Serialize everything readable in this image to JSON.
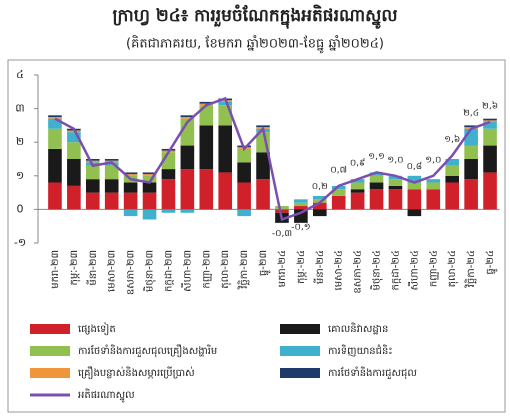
{
  "chart_data": {
    "type": "bar",
    "title": "ក្រាហ្វ ២៤៖ ការរួមចំណែកក្នុងអតិផរណាស្នូល",
    "subtitle": "(គិតជាភាគរយ, ខែមករា ឆ្នាំ២០២៣-ខែធ្នូ ឆ្នាំ២០២៤)",
    "categories": [
      "មករា-២៣",
      "កុម្ភៈ-២៣",
      "មីនា-២៣",
      "មេសា-២៣",
      "ឧសភា-២៣",
      "មិថុនា-២៣",
      "កក្កដា-២៣",
      "សីហា-២៣",
      "កញ្ញា-២៣",
      "តុលា-២៣",
      "វិច្ឆិកា-២៣",
      "ធ្នូ-២៣",
      "មករា-២៤",
      "កុម្ភៈ-២៤",
      "មីនា-២៤",
      "មេសា-២៤",
      "ឧសភា-២៤",
      "មិថុនា-២៤",
      "កក្កដា-២៤",
      "សីហា-២៤",
      "កញ្ញា-២៤",
      "តុលា-២៤",
      "វិច្ឆិកា-២៤",
      "ធ្នូ-២៤"
    ],
    "series": [
      {
        "name": "ផ្សេងទៀត",
        "color": "#d0202a",
        "values": [
          0.8,
          0.7,
          0.5,
          0.5,
          0.5,
          0.5,
          0.9,
          1.2,
          1.2,
          1.1,
          0.8,
          0.9,
          -0.1,
          0.1,
          0.2,
          0.4,
          0.5,
          0.6,
          0.6,
          0.6,
          0.6,
          0.8,
          0.9,
          1.1
        ]
      },
      {
        "name": "គោលនិវាសដ្ឋាន",
        "color": "#1a1a1a",
        "values": [
          1.0,
          0.8,
          0.4,
          0.4,
          0.3,
          0.3,
          0.3,
          0.7,
          1.3,
          1.4,
          0.6,
          0.8,
          -0.3,
          -0.4,
          -0.2,
          0.0,
          0.1,
          0.2,
          0.1,
          -0.2,
          0.0,
          0.2,
          0.6,
          0.8
        ]
      },
      {
        "name": "ការថែទាំនិងការជួសជុលគ្រឿងសង្ហារិម",
        "color": "#92c050",
        "values": [
          0.6,
          0.5,
          0.4,
          0.4,
          0.2,
          0.2,
          0.5,
          0.8,
          0.6,
          0.6,
          0.4,
          0.6,
          0.1,
          0.1,
          0.1,
          0.2,
          0.2,
          0.2,
          0.2,
          0.2,
          0.2,
          0.3,
          0.4,
          0.5
        ]
      },
      {
        "name": "ការទិញយានជំនិះ",
        "color": "#3fb1ce",
        "values": [
          0.3,
          0.3,
          0.1,
          0.1,
          -0.2,
          -0.3,
          -0.1,
          -0.1,
          0.0,
          0.1,
          -0.2,
          0.1,
          0,
          0.1,
          0.1,
          0.1,
          0.1,
          0.1,
          0.1,
          0.2,
          0.1,
          0.2,
          0.5,
          0.2
        ]
      },
      {
        "name": "គ្រឿងបន្លាស់និងសម្ភារប្រើប្រាស់",
        "color": "#f0953c",
        "values": [
          0.05,
          0.05,
          0.05,
          0.05,
          0.05,
          0.05,
          0.05,
          0.05,
          0.05,
          0.05,
          0.05,
          0.05,
          0,
          0,
          0,
          0,
          0,
          0,
          0,
          0,
          0,
          0,
          0.05,
          0.05
        ]
      },
      {
        "name": "ការថែទាំនិងការជួសជុល",
        "color": "#1f3a68",
        "values": [
          0.05,
          0.05,
          0.05,
          0.05,
          0.05,
          0.05,
          0.05,
          0.05,
          0.05,
          0.05,
          0.05,
          0.05,
          0,
          0,
          0,
          0,
          0,
          0,
          0,
          0,
          0,
          0,
          0.05,
          0.05
        ]
      }
    ],
    "line": {
      "name": "អតិផរណាស្នូល",
      "color": "#7b4fb0",
      "values": [
        2.7,
        2.4,
        1.3,
        1.4,
        0.9,
        0.8,
        1.7,
        2.6,
        3.1,
        3.3,
        1.8,
        2.4,
        -0.3,
        -0.1,
        0.2,
        0.7,
        0.9,
        1.1,
        1.0,
        0.8,
        1.0,
        1.6,
        2.4,
        2.6
      ],
      "value_labels": [
        null,
        null,
        null,
        null,
        null,
        null,
        null,
        null,
        null,
        null,
        null,
        null,
        "-០,៣",
        "-០,១",
        "០,២",
        "០,៧",
        "០,៩",
        "១,១",
        "១,០",
        "០,៨",
        "១,០",
        "១,៦",
        "២,៤",
        "២,៦"
      ]
    },
    "ylim": [
      -1,
      4
    ],
    "yticks": [
      {
        "value": -1,
        "label": "-១"
      },
      0,
      {
        "value": 1,
        "label": "១"
      },
      {
        "value": 2,
        "label": "២"
      },
      {
        "value": 3,
        "label": "៣"
      },
      {
        "value": 4,
        "label": "៤"
      }
    ]
  }
}
